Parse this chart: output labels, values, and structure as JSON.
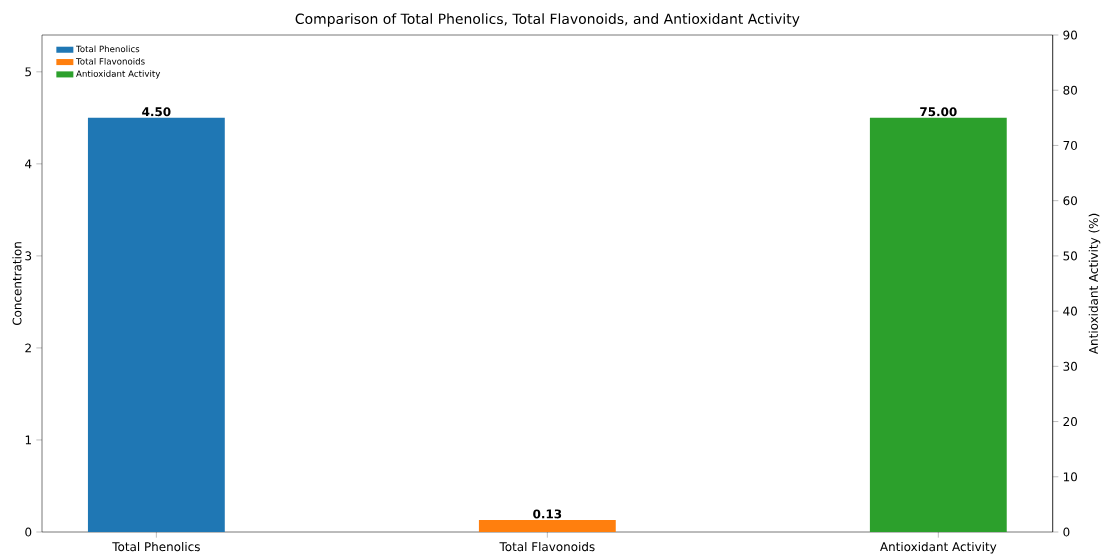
{
  "chart_data": {
    "type": "bar",
    "title": "Comparison of Total Phenolics, Total Flavonoids, and Antioxidant Activity",
    "categories": [
      "Total Phenolics",
      "Total Flavonoids",
      "Antioxidant Activity"
    ],
    "ylabel": "Concentration",
    "y2label": "Antioxidant Activity (%)",
    "series": [
      {
        "name": "Total Phenolics",
        "color": "#1f77b4",
        "values": [
          4.5,
          null,
          null
        ],
        "value_labels": [
          "4.50",
          null,
          null
        ]
      },
      {
        "name": "Total Flavonoids",
        "color": "#ff7f0e",
        "values": [
          null,
          0.13,
          null
        ],
        "value_labels": [
          null,
          "0.13",
          null
        ]
      },
      {
        "name": "Antioxidant Activity",
        "color": "#2ca02c",
        "values": [
          null,
          null,
          75
        ],
        "value_labels": [
          null,
          null,
          "75.00"
        ],
        "axis": "y2"
      }
    ],
    "ylim": [
      0,
      5.4
    ],
    "yticks": [
      0,
      1,
      2,
      3,
      4,
      5
    ],
    "y2lim": [
      0,
      90
    ],
    "y2ticks": [
      0,
      10,
      20,
      30,
      40,
      50,
      60,
      70,
      80,
      90
    ],
    "legend": "top left"
  }
}
